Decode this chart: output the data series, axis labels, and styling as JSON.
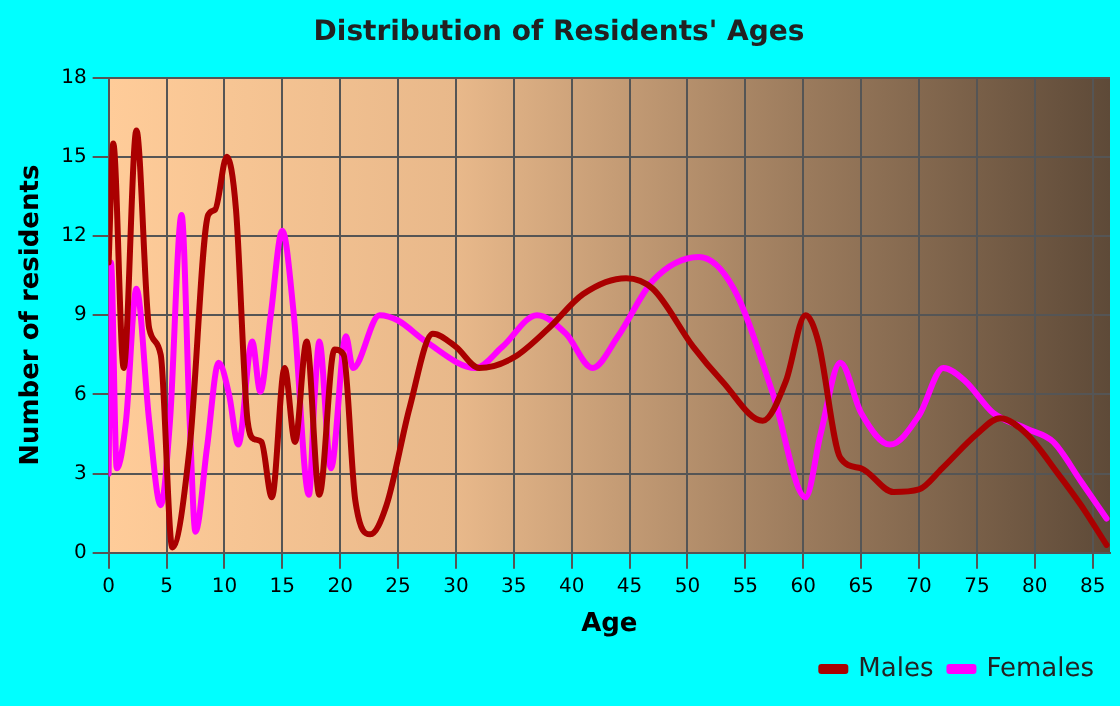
{
  "chart_data": {
    "type": "line",
    "title": "Distribution of Residents' Ages",
    "xlabel": "Age",
    "ylabel": "Number of residents",
    "xlim": [
      0,
      86.5
    ],
    "xticks": [
      0,
      5,
      10,
      15,
      20,
      25,
      30,
      35,
      40,
      45,
      50,
      55,
      60,
      65,
      70,
      75,
      80,
      85
    ],
    "ylim": [
      0,
      18
    ],
    "yticks": [
      0,
      3,
      6,
      9,
      12,
      15,
      18
    ],
    "grid": true,
    "legend": "bottom right",
    "marker": "none",
    "line_style": "solid",
    "series": [
      {
        "name": "Males",
        "color": "#aa0000",
        "x": [
          0,
          0.4,
          1.3,
          2.4,
          3.5,
          4.5,
          5.5,
          7,
          8.6,
          9.2,
          10.2,
          11,
          12,
          12.6,
          13.2,
          14.1,
          15.2,
          16.1,
          17.1,
          18.2,
          19.5,
          20.3,
          21.3,
          22.6,
          24,
          26,
          28,
          30,
          32,
          35,
          38,
          41,
          44.7,
          47,
          50.5,
          53,
          56.5,
          58.5,
          60.2,
          61.3,
          63.2,
          65,
          67.8,
          70,
          72,
          75,
          77,
          79.3,
          82,
          84,
          86.2
        ],
        "values": [
          11,
          15.5,
          7,
          16,
          8.5,
          7.5,
          0.2,
          4,
          12.8,
          13,
          15,
          13,
          5,
          4.3,
          4.2,
          2.1,
          7,
          4.2,
          8,
          2.2,
          7.7,
          7.5,
          2,
          0.7,
          1.8,
          5.5,
          8.3,
          7.8,
          7,
          7.4,
          8.5,
          9.8,
          10.4,
          10,
          7.8,
          6.5,
          5,
          6.5,
          9,
          8,
          3.6,
          3.2,
          2.3,
          2.4,
          3.2,
          4.5,
          5.1,
          4.5,
          3,
          1.8,
          0.3
        ]
      },
      {
        "name": "Females",
        "color": "#ff00ff",
        "x": [
          0,
          0.2,
          0.7,
          1.5,
          2.4,
          3.5,
          4.5,
          5.3,
          6.3,
          7,
          7.5,
          8.5,
          9.5,
          10.4,
          11.2,
          12.4,
          13.1,
          14,
          15,
          16,
          17.3,
          17.8,
          18.2,
          19.2,
          20.5,
          21.1,
          23.4,
          25,
          27.4,
          31.7,
          34,
          37,
          39.5,
          41.8,
          44,
          47,
          51,
          54,
          57.4,
          60.2,
          61.5,
          63.2,
          65,
          67.5,
          70,
          72.1,
          74,
          76.4,
          79.3,
          81.6,
          84,
          86.2
        ],
        "values": [
          3,
          11,
          3.2,
          5,
          10,
          5,
          1.8,
          5,
          12.8,
          5,
          0.8,
          4,
          7.2,
          6,
          4.1,
          8,
          6.1,
          9,
          12.2,
          9,
          2.2,
          6,
          8,
          3.2,
          8.2,
          7,
          9,
          8.8,
          8,
          7,
          7.8,
          9,
          8.3,
          7,
          8.2,
          10.3,
          11.2,
          10,
          6,
          2.1,
          4.5,
          7.2,
          5.3,
          4.1,
          5.2,
          7,
          6.5,
          5.3,
          4.7,
          4.2,
          2.7,
          1.3
        ]
      }
    ]
  }
}
